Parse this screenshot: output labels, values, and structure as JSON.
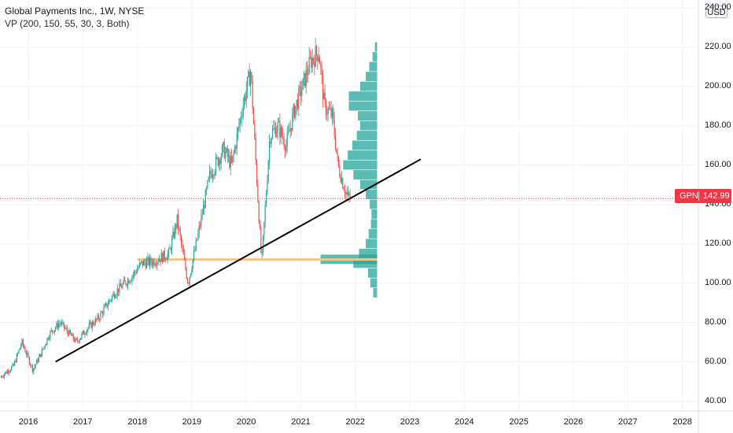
{
  "header": {
    "title": "Global Payments Inc., 1W, NYSE",
    "indicator": "VP (200, 150, 55, 30, 3, Both)"
  },
  "currency": "USD",
  "last_price": {
    "symbol": "GPN",
    "value": "142.99"
  },
  "colors": {
    "up": "#26a69a",
    "down": "#ef5350",
    "volume_profile": "#26a69a",
    "poc_line": "#f7c57f",
    "trendline": "#000000",
    "last_price": "#f23645",
    "grid": "#f0f3fa"
  },
  "chart_data": {
    "type": "candlestick",
    "grid": true,
    "y_axis": {
      "range": [
        35,
        242
      ],
      "ticks": [
        "40.00",
        "60.00",
        "80.00",
        "100.00",
        "120.00",
        "140.00",
        "160.00",
        "180.00",
        "200.00",
        "220.00",
        "240.00"
      ]
    },
    "x_axis": {
      "ticks": [
        "2016",
        "2017",
        "2018",
        "2019",
        "2020",
        "2021",
        "2022",
        "2023",
        "2024",
        "2025",
        "2026",
        "2027",
        "2028"
      ]
    },
    "price_path": [
      [
        2015.5,
        52
      ],
      [
        2015.75,
        58
      ],
      [
        2015.9,
        70
      ],
      [
        2016.1,
        56
      ],
      [
        2016.25,
        64
      ],
      [
        2016.4,
        74
      ],
      [
        2016.6,
        80
      ],
      [
        2016.9,
        70
      ],
      [
        2017.1,
        77
      ],
      [
        2017.3,
        82
      ],
      [
        2017.6,
        95
      ],
      [
        2017.9,
        103
      ],
      [
        2018.1,
        110
      ],
      [
        2018.3,
        111
      ],
      [
        2018.6,
        115
      ],
      [
        2018.75,
        132
      ],
      [
        2018.95,
        100
      ],
      [
        2019.1,
        120
      ],
      [
        2019.35,
        155
      ],
      [
        2019.6,
        168
      ],
      [
        2019.75,
        160
      ],
      [
        2019.95,
        190
      ],
      [
        2020.1,
        208
      ],
      [
        2020.2,
        158
      ],
      [
        2020.3,
        110
      ],
      [
        2020.45,
        175
      ],
      [
        2020.6,
        180
      ],
      [
        2020.75,
        170
      ],
      [
        2020.9,
        188
      ],
      [
        2021.05,
        200
      ],
      [
        2021.2,
        213
      ],
      [
        2021.35,
        218
      ],
      [
        2021.45,
        190
      ],
      [
        2021.6,
        185
      ],
      [
        2021.7,
        160
      ],
      [
        2021.8,
        150
      ],
      [
        2021.87,
        144
      ],
      [
        2021.92,
        143
      ]
    ],
    "volume_profile": [
      [
        95,
        0.07
      ],
      [
        100,
        0.12
      ],
      [
        105,
        0.16
      ],
      [
        110,
        0.42
      ],
      [
        112,
        1.0
      ],
      [
        115,
        0.32
      ],
      [
        120,
        0.2
      ],
      [
        125,
        0.15
      ],
      [
        130,
        0.11
      ],
      [
        135,
        0.1
      ],
      [
        140,
        0.13
      ],
      [
        145,
        0.2
      ],
      [
        150,
        0.3
      ],
      [
        155,
        0.42
      ],
      [
        160,
        0.6
      ],
      [
        165,
        0.52
      ],
      [
        170,
        0.44
      ],
      [
        175,
        0.36
      ],
      [
        180,
        0.3
      ],
      [
        185,
        0.34
      ],
      [
        190,
        0.5
      ],
      [
        195,
        0.5
      ],
      [
        200,
        0.3
      ],
      [
        205,
        0.2
      ],
      [
        210,
        0.14
      ],
      [
        215,
        0.08
      ],
      [
        220,
        0.04
      ]
    ],
    "poc_price": 112,
    "trendline": {
      "start": [
        2016.5,
        60
      ],
      "end": [
        2023.2,
        163
      ]
    },
    "last_price": 142.99
  }
}
